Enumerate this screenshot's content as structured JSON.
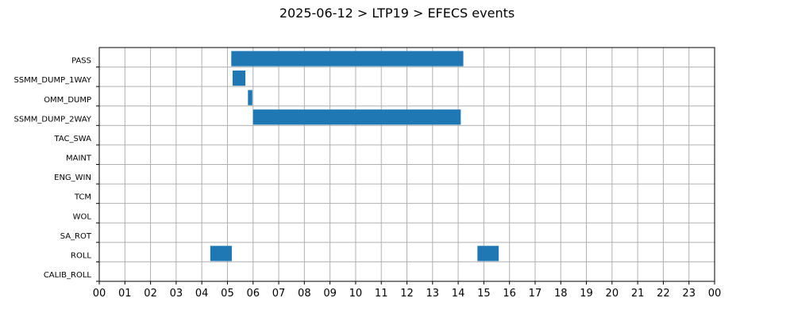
{
  "chart_data": {
    "type": "bar",
    "orientation": "horizontal-timeline",
    "title": "2025-06-12 > LTP19 > EFECS events",
    "xlabel": "",
    "ylabel": "",
    "xlim": [
      0,
      24
    ],
    "x_tick_labels": [
      "00",
      "01",
      "02",
      "03",
      "04",
      "05",
      "06",
      "07",
      "08",
      "09",
      "10",
      "11",
      "12",
      "13",
      "14",
      "15",
      "16",
      "17",
      "18",
      "19",
      "20",
      "21",
      "22",
      "23",
      "00"
    ],
    "categories": [
      "PASS",
      "SSMM_DUMP_1WAY",
      "OMM_DUMP",
      "SSMM_DUMP_2WAY",
      "TAC_SWA",
      "MAINT",
      "ENG_WIN",
      "TCM",
      "WOL",
      "SA_ROT",
      "ROLL",
      "CALIB_ROLL"
    ],
    "grid": true,
    "bar_color": "#1f77b4",
    "events": [
      {
        "category": "PASS",
        "start": 5.15,
        "end": 14.2
      },
      {
        "category": "SSMM_DUMP_1WAY",
        "start": 5.2,
        "end": 5.7
      },
      {
        "category": "OMM_DUMP",
        "start": 5.8,
        "end": 5.97
      },
      {
        "category": "SSMM_DUMP_2WAY",
        "start": 6.0,
        "end": 14.1
      },
      {
        "category": "ROLL",
        "start": 4.33,
        "end": 5.17
      },
      {
        "category": "ROLL",
        "start": 14.75,
        "end": 15.58
      }
    ]
  }
}
